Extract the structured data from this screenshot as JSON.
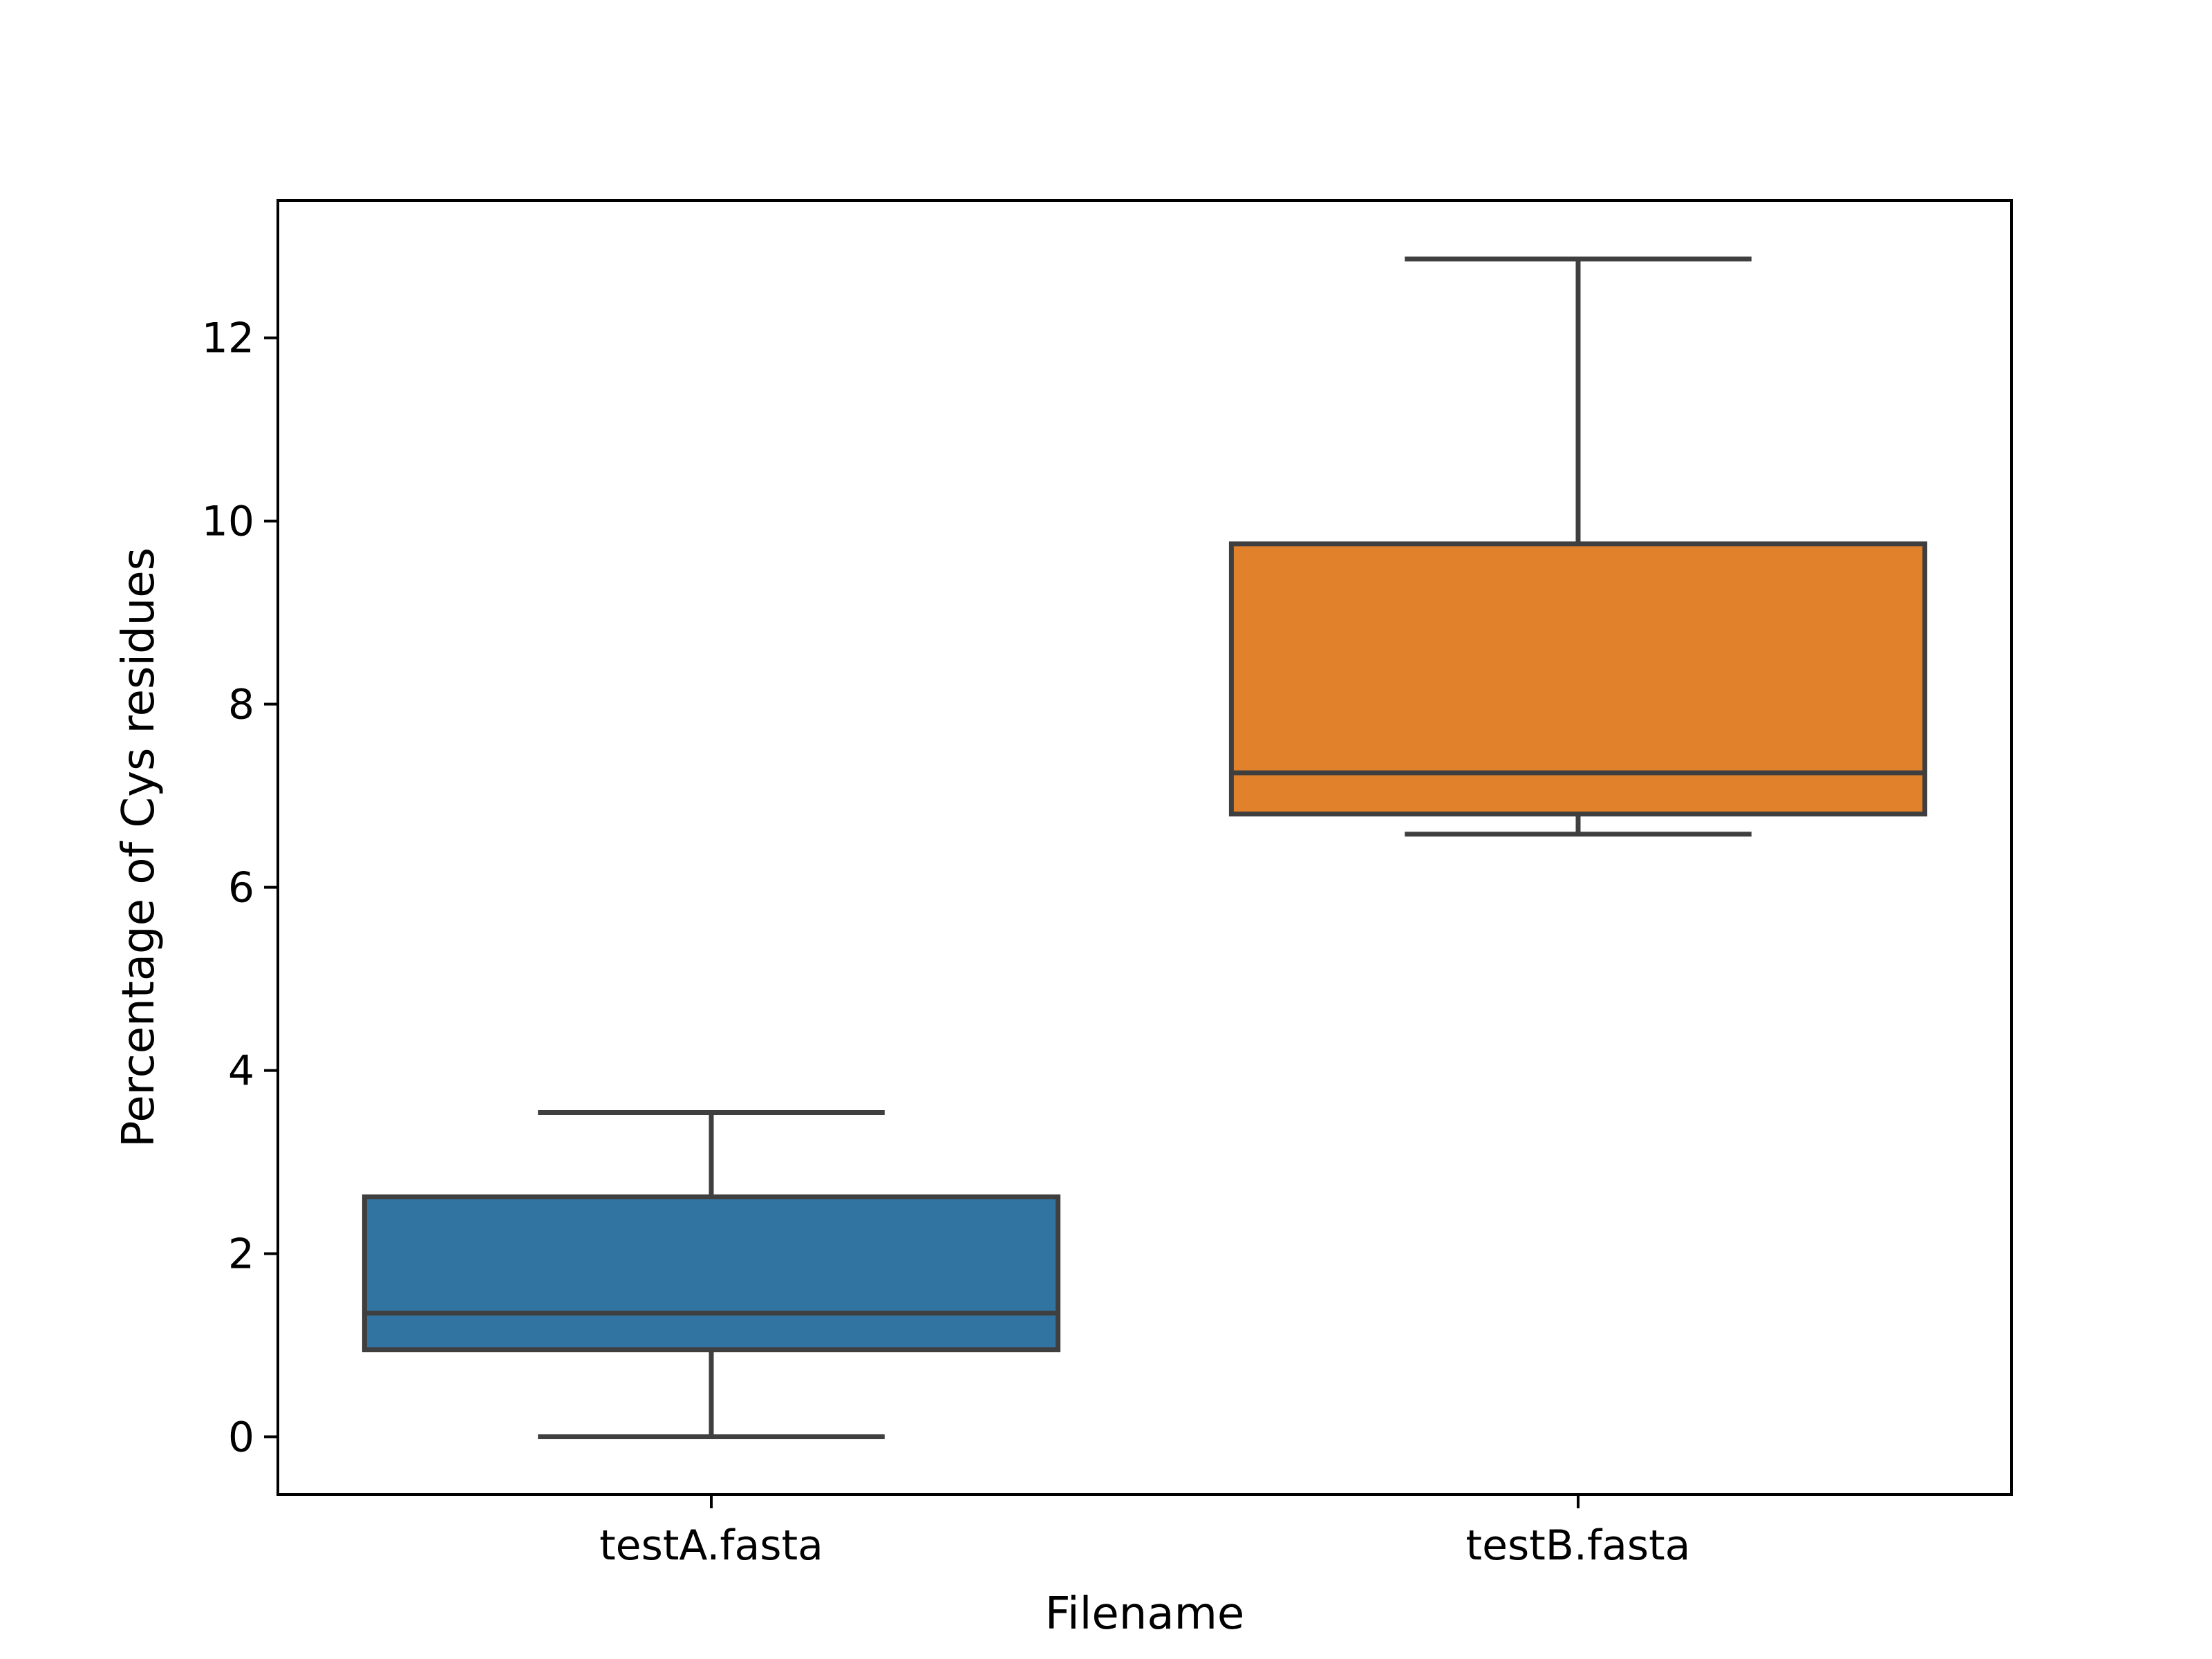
{
  "chart_data": {
    "type": "box",
    "title": "",
    "xlabel": "Filename",
    "ylabel": "Percentage of Cys residues",
    "ylim": [
      -0.63,
      13.5
    ],
    "yticks": [
      "0",
      "2",
      "4",
      "6",
      "8",
      "10",
      "12"
    ],
    "categories": [
      "testA.fasta",
      "testB.fasta"
    ],
    "boxes": [
      {
        "name": "testA.fasta",
        "color": "#3274a1",
        "whisker_low": 0.0,
        "q1": 0.95,
        "median": 1.35,
        "q3": 2.62,
        "whisker_high": 3.54
      },
      {
        "name": "testB.fasta",
        "color": "#e1812c",
        "whisker_low": 6.58,
        "q1": 6.8,
        "median": 7.25,
        "q3": 9.75,
        "whisker_high": 12.86
      }
    ],
    "grid": false,
    "legend": "none",
    "colors": {
      "edge": "#3f3f3f",
      "axes": "#000000",
      "background": "#ffffff"
    }
  }
}
